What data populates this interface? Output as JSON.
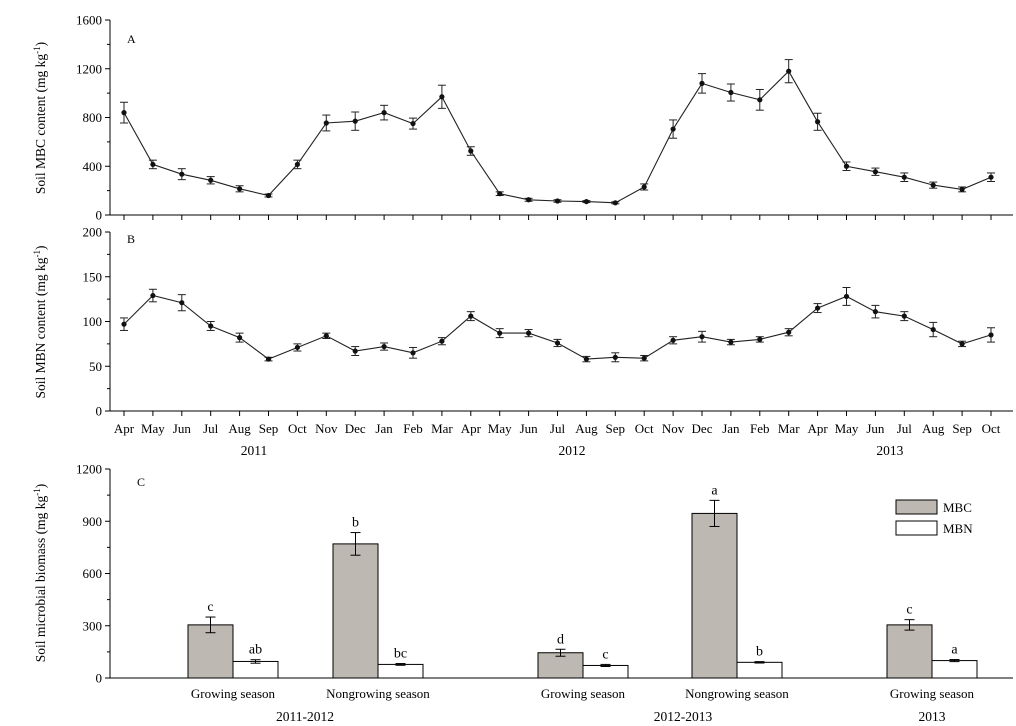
{
  "chart_data": [
    {
      "type": "line",
      "panel_label": "A",
      "ylabel": "Soil MBC content (mg kg",
      "ylabel_sup": "-1",
      "ylabel_end": ")",
      "ylim": [
        0,
        1600
      ],
      "yticks": [
        0,
        400,
        800,
        1200,
        1600
      ],
      "x": [
        "Apr",
        "May",
        "Jun",
        "Jul",
        "Aug",
        "Sep",
        "Oct",
        "Nov",
        "Dec",
        "Jan",
        "Feb",
        "Mar",
        "Apr",
        "May",
        "Jun",
        "Jul",
        "Aug",
        "Sep",
        "Oct",
        "Nov",
        "Dec",
        "Jan",
        "Feb",
        "Mar",
        "Apr",
        "May",
        "Jun",
        "Jul",
        "Aug",
        "Sep",
        "Oct"
      ],
      "values": [
        840,
        415,
        335,
        285,
        215,
        160,
        415,
        755,
        770,
        840,
        750,
        970,
        525,
        175,
        125,
        115,
        110,
        100,
        230,
        705,
        1080,
        1005,
        945,
        1180,
        765,
        400,
        355,
        310,
        245,
        210,
        310
      ],
      "errors": [
        85,
        35,
        45,
        30,
        25,
        12,
        35,
        65,
        75,
        60,
        45,
        95,
        35,
        15,
        12,
        10,
        8,
        8,
        25,
        75,
        80,
        70,
        85,
        95,
        70,
        35,
        30,
        35,
        25,
        20,
        35
      ]
    },
    {
      "type": "line",
      "panel_label": "B",
      "ylabel": "Soil MBN content (mg kg",
      "ylabel_sup": "-1",
      "ylabel_end": ")",
      "ylim": [
        0,
        200
      ],
      "yticks": [
        0,
        50,
        100,
        150,
        200
      ],
      "x": [
        "Apr",
        "May",
        "Jun",
        "Jul",
        "Aug",
        "Sep",
        "Oct",
        "Nov",
        "Dec",
        "Jan",
        "Feb",
        "Mar",
        "Apr",
        "May",
        "Jun",
        "Jul",
        "Aug",
        "Sep",
        "Oct",
        "Nov",
        "Dec",
        "Jan",
        "Feb",
        "Mar",
        "Apr",
        "May",
        "Jun",
        "Jul",
        "Aug",
        "Sep",
        "Oct"
      ],
      "values": [
        97,
        129,
        121,
        95,
        82,
        58,
        71,
        84,
        67,
        72,
        65,
        78,
        106,
        87,
        87,
        76,
        58,
        60,
        59,
        79,
        83,
        77,
        80,
        88,
        115,
        128,
        111,
        106,
        91,
        75,
        85
      ],
      "errors": [
        7,
        7,
        9,
        5,
        5,
        2,
        4,
        3,
        5,
        4,
        6,
        4,
        5,
        5,
        4,
        4,
        3,
        5,
        3,
        4,
        6,
        3,
        3,
        4,
        5,
        10,
        7,
        5,
        8,
        3,
        8
      ],
      "years": [
        "2011",
        "2012",
        "2013"
      ]
    },
    {
      "type": "bar",
      "panel_label": "C",
      "ylabel": "Soil microbial biomass (mg kg",
      "ylabel_sup": "-1",
      "ylabel_end": ")",
      "ylim": [
        0,
        1200
      ],
      "yticks": [
        0,
        300,
        600,
        900,
        1200
      ],
      "categories": [
        "Growing season",
        "Nongrowing season",
        "Growing season",
        "Nongrowing season",
        "Growing season"
      ],
      "groups": [
        "2011-2012",
        "2012-2013",
        "2013"
      ],
      "series": [
        {
          "name": "MBC",
          "color": "#bdb8b2",
          "values": [
            305,
            770,
            145,
            945,
            305
          ],
          "errors": [
            45,
            65,
            20,
            75,
            30
          ],
          "labels": [
            "c",
            "b",
            "d",
            "a",
            "c"
          ]
        },
        {
          "name": "MBN",
          "color": "#ffffff",
          "values": [
            95,
            78,
            72,
            90,
            100
          ],
          "errors": [
            10,
            5,
            6,
            4,
            6
          ],
          "labels": [
            "ab",
            "bc",
            "c",
            "b",
            "a"
          ]
        }
      ],
      "legend_position": "top-right"
    }
  ]
}
